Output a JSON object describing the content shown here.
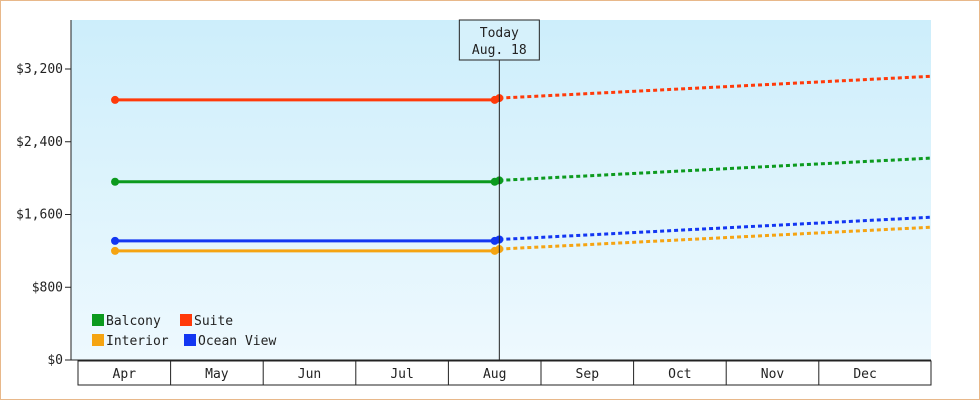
{
  "chart_data": {
    "type": "line",
    "title": "",
    "xlabel": "",
    "ylabel": "",
    "categories": [
      "Apr",
      "May",
      "Jun",
      "Jul",
      "Aug",
      "Sep",
      "Oct",
      "Nov",
      "Dec"
    ],
    "ylim": [
      0,
      3200
    ],
    "yticks": [
      0,
      800,
      1600,
      2400,
      3200
    ],
    "ytick_labels": [
      "$0",
      "$800",
      "$1,600",
      "$2,400",
      "$3,200"
    ],
    "grid": false,
    "legend_position": "bottom-left",
    "today_marker": {
      "label": "Today",
      "date": "Aug. 18",
      "x": 4.05
    },
    "series": [
      {
        "name": "Balcony",
        "color": "#0c9a1e",
        "actual": [
          [
            -0.1,
            1960
          ],
          [
            4.0,
            1960
          ],
          [
            4.05,
            1975
          ]
        ],
        "projected": [
          [
            4.05,
            1975
          ],
          [
            9.5,
            2220
          ]
        ]
      },
      {
        "name": "Suite",
        "color": "#ff3a0a",
        "actual": [
          [
            -0.1,
            2860
          ],
          [
            4.0,
            2860
          ],
          [
            4.05,
            2880
          ]
        ],
        "projected": [
          [
            4.05,
            2880
          ],
          [
            9.5,
            3120
          ]
        ]
      },
      {
        "name": "Interior",
        "color": "#f5a412",
        "actual": [
          [
            -0.1,
            1200
          ],
          [
            4.0,
            1200
          ],
          [
            4.05,
            1220
          ]
        ],
        "projected": [
          [
            4.05,
            1220
          ],
          [
            9.5,
            1460
          ]
        ]
      },
      {
        "name": "Ocean View",
        "color": "#1236f2",
        "actual": [
          [
            -0.1,
            1310
          ],
          [
            4.0,
            1310
          ],
          [
            4.05,
            1325
          ]
        ],
        "projected": [
          [
            4.05,
            1325
          ],
          [
            9.5,
            1570
          ]
        ]
      }
    ]
  }
}
